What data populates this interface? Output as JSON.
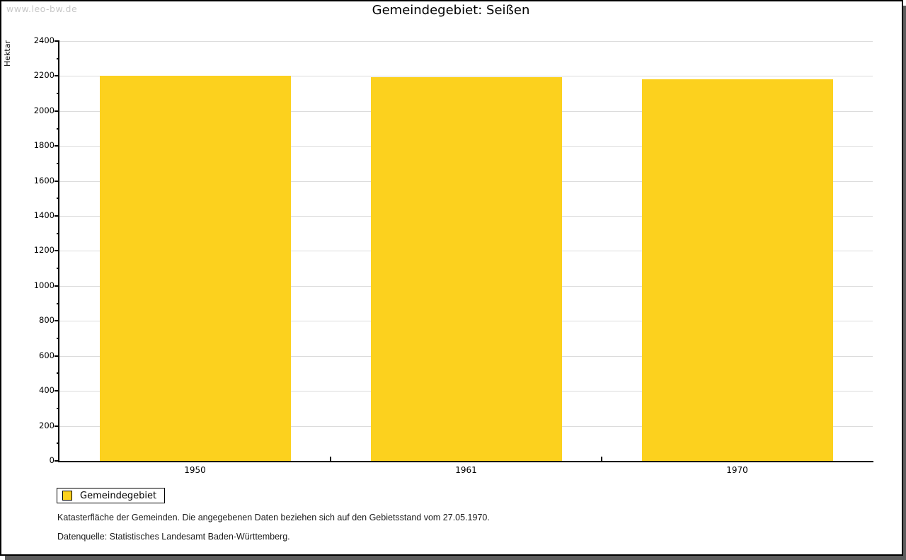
{
  "watermark": "www.leo-bw.de",
  "chart_data": {
    "type": "bar",
    "title": "Gemeindegebiet: Seißen",
    "ylabel": "Hektar",
    "categories": [
      "1950",
      "1961",
      "1970"
    ],
    "series": [
      {
        "name": "Gemeindegebiet",
        "color": "#FCD11E",
        "values": [
          2203,
          2192,
          2180
        ]
      }
    ],
    "ylim": [
      0,
      2400
    ],
    "ytick_step": 200,
    "y_minor_tick_step": 100,
    "grid": true,
    "legend_position": "bottom-left"
  },
  "colors": {
    "bar": "#FCD11E",
    "grid": "#DCDCDC",
    "axis": "#000000",
    "watermark": "#C8C8C8",
    "shadow": "#5E5E5E"
  },
  "footnotes": [
    "Katasterfläche der Gemeinden. Die angegebenen Daten beziehen sich auf den Gebietsstand vom 27.05.1970.",
    "Datenquelle: Statistisches Landesamt Baden-Württemberg."
  ]
}
